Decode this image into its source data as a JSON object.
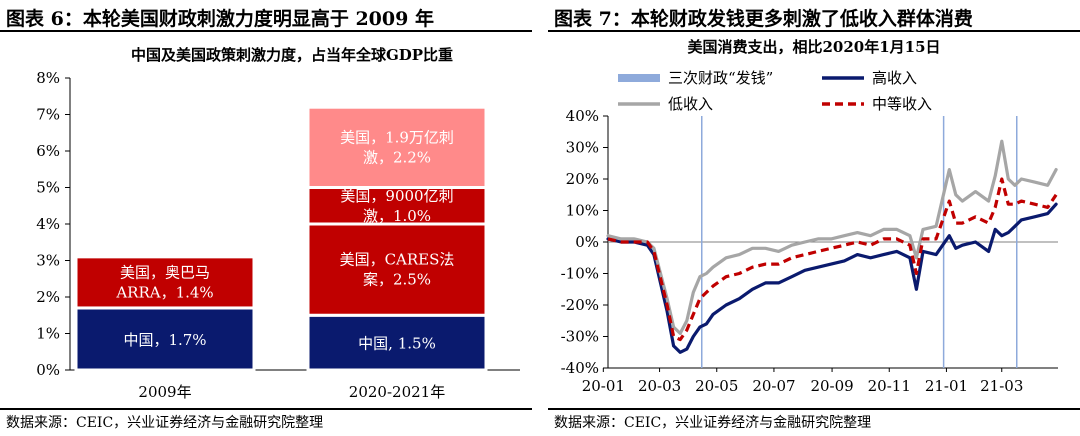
{
  "left": {
    "figure_title": "图表 6：本轮美国财政刺激力度明显高于 2009 年",
    "source": "数据来源：CEIC，兴业证券经济与金融研究院整理"
  },
  "right": {
    "figure_title": "图表 7：本轮财政发钱更多刺激了低收入群体消费",
    "source": "数据来源：CEIC，兴业证券经济与金融研究院整理"
  },
  "chart_data": [
    {
      "type": "bar",
      "stacked": true,
      "title": "中国及美国政策刺激力度，占当年全球GDP比重",
      "xlabel": "",
      "ylabel": "",
      "ylim": [
        0,
        8
      ],
      "y_ticks": [
        "0%",
        "1%",
        "2%",
        "3%",
        "4%",
        "5%",
        "6%",
        "7%",
        "8%"
      ],
      "categories": [
        "2009年",
        "2020-2021年"
      ],
      "stacks": [
        [
          {
            "label": "中国，1.7%",
            "value": 1.7,
            "color": "#0a1a6e"
          },
          {
            "label": "美国，奥巴马ARRA，1.4%",
            "line1": "美国，奥巴马",
            "line2": "ARRA，1.4%",
            "value": 1.4,
            "color": "#c00000"
          }
        ],
        [
          {
            "label": "中国, 1.5%",
            "value": 1.5,
            "color": "#0a1a6e"
          },
          {
            "label": "美国，CARES法案，2.5%",
            "line1": "美国，CARES法",
            "line2": "案，2.5%",
            "value": 2.5,
            "color": "#c00000"
          },
          {
            "label": "美国，9000亿刺激，1.0%",
            "line1": "美国，9000亿刺",
            "line2": "激，1.0%",
            "value": 1.0,
            "color": "#c00000"
          },
          {
            "label": "美国，1.9万亿刺激，2.2%",
            "line1": "美国，1.9万亿刺",
            "line2": "激，2.2%",
            "value": 2.2,
            "color": "#ff8a8a"
          }
        ]
      ]
    },
    {
      "type": "line",
      "title": "美国消费支出，相比2020年1月15日",
      "xlabel": "",
      "ylabel": "",
      "ylim": [
        -40,
        40
      ],
      "y_ticks": [
        "-40%",
        "-30%",
        "-20%",
        "-10%",
        "0%",
        "10%",
        "20%",
        "30%",
        "40%"
      ],
      "x_ticks": [
        "20-01",
        "20-03",
        "20-05",
        "20-07",
        "20-09",
        "20-11",
        "21-01",
        "21-03"
      ],
      "x_range": [
        "2020-01-06",
        "2021-04-30"
      ],
      "x": [
        "2020-01-06",
        "2020-01-20",
        "2020-02-03",
        "2020-02-17",
        "2020-02-24",
        "2020-03-09",
        "2020-03-16",
        "2020-03-23",
        "2020-03-30",
        "2020-04-06",
        "2020-04-13",
        "2020-04-20",
        "2020-04-27",
        "2020-05-11",
        "2020-05-25",
        "2020-06-08",
        "2020-06-22",
        "2020-07-06",
        "2020-07-20",
        "2020-08-03",
        "2020-08-17",
        "2020-08-31",
        "2020-09-14",
        "2020-09-28",
        "2020-10-12",
        "2020-10-26",
        "2020-11-09",
        "2020-11-23",
        "2020-11-30",
        "2020-12-07",
        "2020-12-21",
        "2021-01-04",
        "2021-01-11",
        "2021-01-18",
        "2021-02-01",
        "2021-02-15",
        "2021-02-22",
        "2021-03-01",
        "2021-03-08",
        "2021-03-15",
        "2021-03-22",
        "2021-04-05",
        "2021-04-19",
        "2021-04-28"
      ],
      "series": [
        {
          "name": "高收入",
          "color": "#0a1a6e",
          "style": "solid",
          "values": [
            1,
            0,
            0,
            -1,
            -4,
            -22,
            -33,
            -35,
            -34,
            -30,
            -27,
            -26,
            -23,
            -20,
            -18,
            -15,
            -13,
            -13,
            -11,
            -9,
            -8,
            -7,
            -6,
            -4,
            -5,
            -4,
            -3,
            -5,
            -15,
            -3,
            -4,
            2,
            -2,
            -1,
            0,
            -3,
            4,
            2,
            3,
            5,
            7,
            8,
            9,
            12
          ]
        },
        {
          "name": "低收入",
          "color": "#a6a6a6",
          "style": "solid",
          "values": [
            2,
            1,
            1,
            0,
            -2,
            -18,
            -27,
            -29,
            -25,
            -16,
            -11,
            -10,
            -8,
            -5,
            -4,
            -2,
            -2,
            -3,
            -1,
            0,
            1,
            1,
            2,
            3,
            2,
            4,
            4,
            2,
            -5,
            4,
            5,
            23,
            15,
            13,
            16,
            13,
            21,
            32,
            20,
            18,
            20,
            19,
            18,
            23
          ]
        },
        {
          "name": "中等收入",
          "color": "#c00000",
          "style": "dashed",
          "values": [
            1,
            0,
            0,
            0,
            -3,
            -20,
            -30,
            -31,
            -28,
            -23,
            -18,
            -16,
            -14,
            -11,
            -10,
            -8,
            -7,
            -7,
            -5,
            -4,
            -3,
            -2,
            -1,
            0,
            -1,
            1,
            1,
            -1,
            -10,
            1,
            1,
            13,
            6,
            6,
            8,
            6,
            11,
            20,
            12,
            12,
            13,
            12,
            11,
            15
          ]
        },
        {
          "name": "三次财政“发钱”",
          "color": "#8eaadb",
          "style": "vline",
          "dates": [
            "2020-04-15",
            "2020-12-29",
            "2021-03-17"
          ]
        }
      ]
    }
  ]
}
